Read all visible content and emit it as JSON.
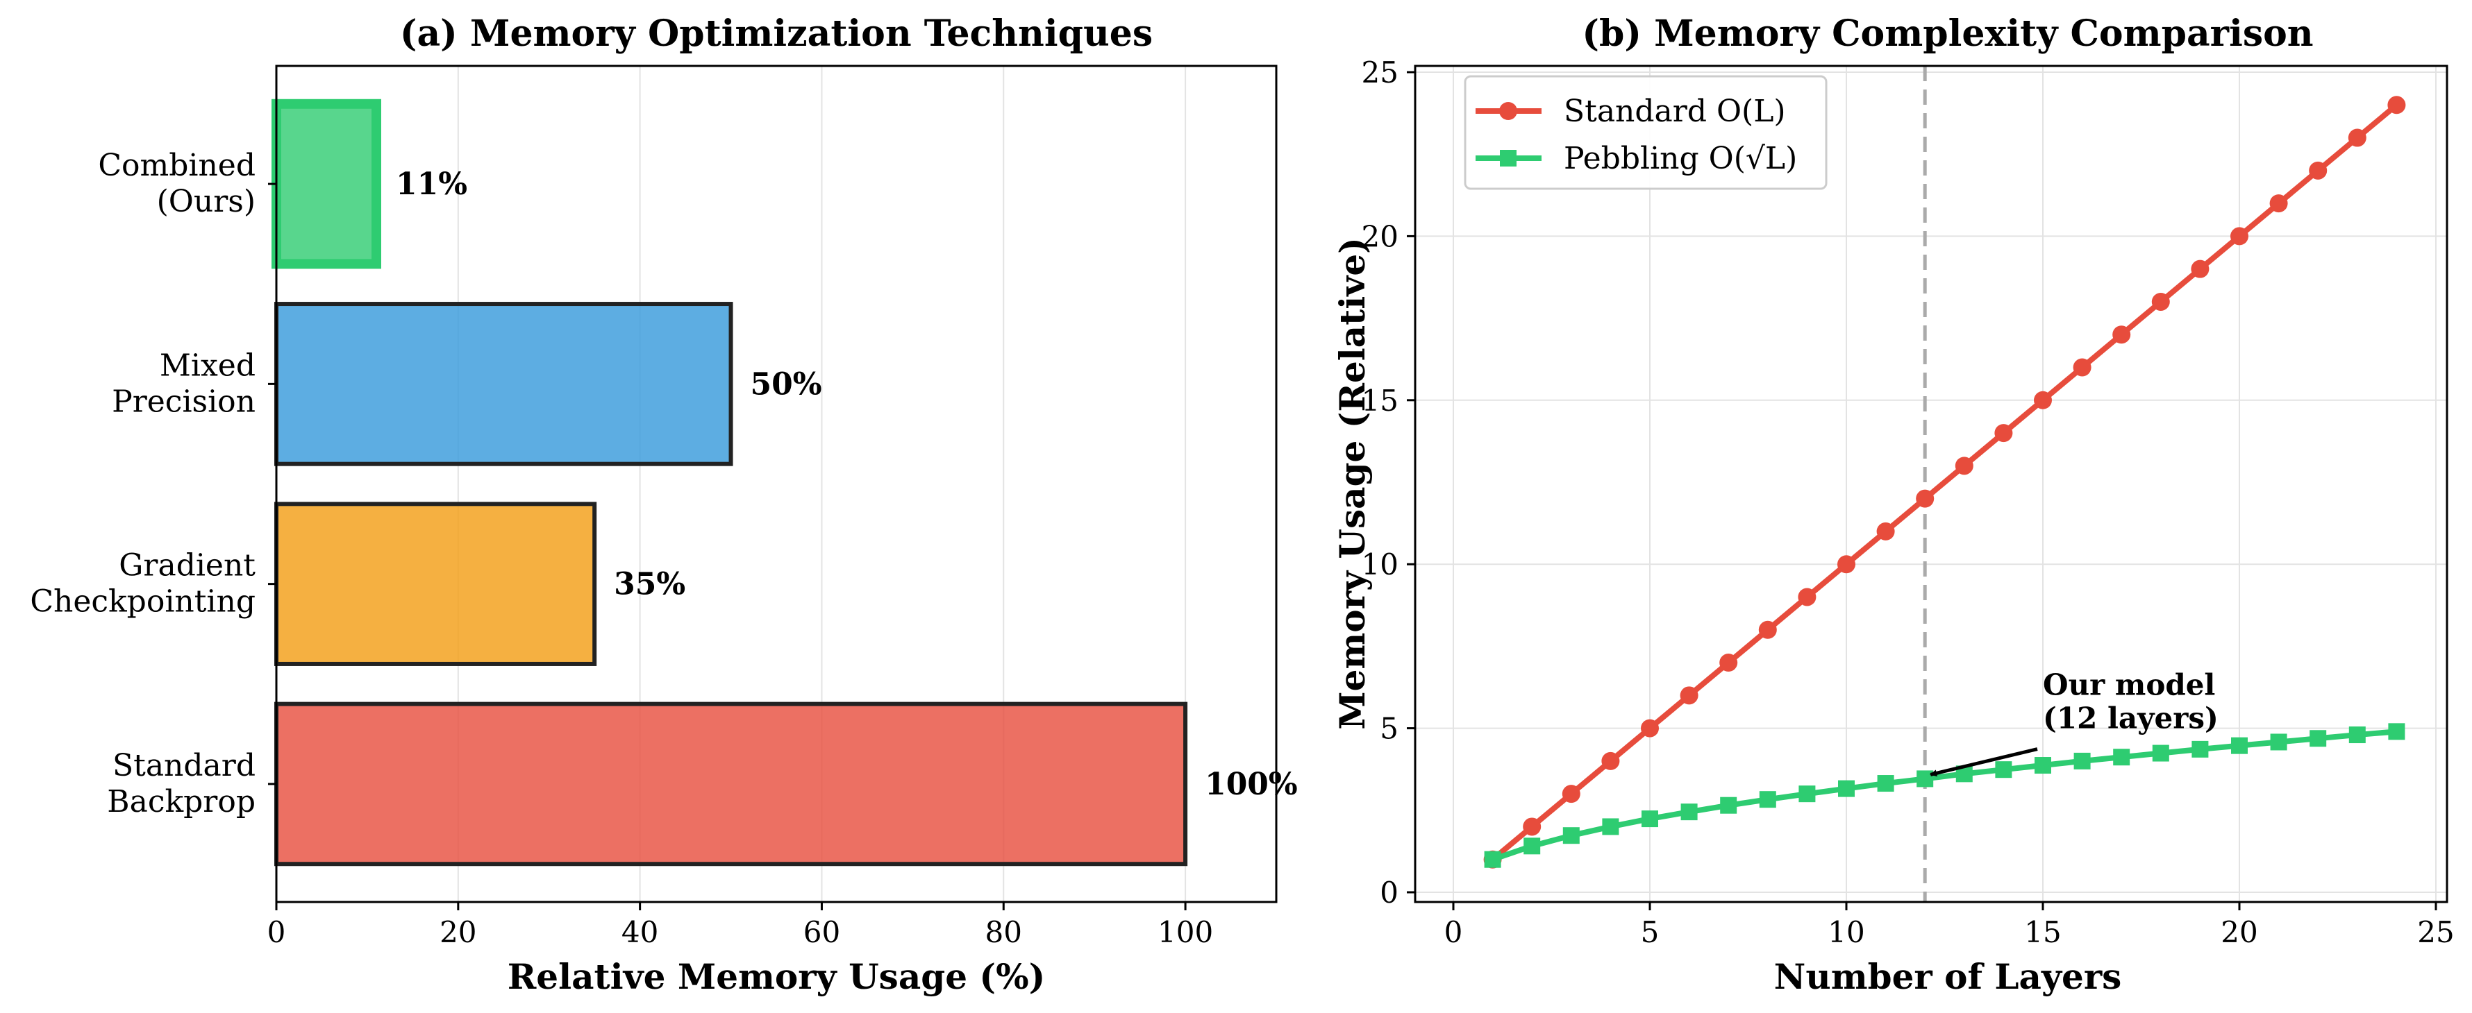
{
  "chart_data": [
    {
      "type": "bar",
      "orientation": "horizontal",
      "title": "(a) Memory Optimization Techniques",
      "xlabel": "Relative Memory Usage (%)",
      "ylabel": "",
      "xlim": [
        0,
        110
      ],
      "xticks": [
        0,
        20,
        40,
        60,
        80,
        100
      ],
      "grid": "x",
      "categories": [
        "Standard\nBackprop",
        "Gradient\nCheckpointing",
        "Mixed\nPrecision",
        "Combined\n(Ours)"
      ],
      "values": [
        100,
        35,
        50,
        11
      ],
      "value_labels": [
        "100%",
        "35%",
        "50%",
        "11%"
      ],
      "colors": [
        "#e74c3c",
        "#f39c12",
        "#3498db",
        "#2ecc71"
      ],
      "highlight": "Combined\n(Ours)"
    },
    {
      "type": "line",
      "title": "(b) Memory Complexity Comparison",
      "xlabel": "Number of Layers",
      "ylabel": "Memory Usage (Relative)",
      "xlim": [
        0,
        25
      ],
      "ylim": [
        0,
        25
      ],
      "xticks": [
        0,
        5,
        10,
        15,
        20,
        25
      ],
      "yticks": [
        0,
        5,
        10,
        15,
        20,
        25
      ],
      "grid": true,
      "legend_position": "top-left",
      "x": [
        1,
        2,
        3,
        4,
        5,
        6,
        7,
        8,
        9,
        10,
        11,
        12,
        13,
        14,
        15,
        16,
        17,
        18,
        19,
        20,
        21,
        22,
        23,
        24
      ],
      "series": [
        {
          "name": "Standard O(L)",
          "color": "#e74c3c",
          "marker": "circle",
          "values": [
            1,
            2,
            3,
            4,
            5,
            6,
            7,
            8,
            9,
            10,
            11,
            12,
            13,
            14,
            15,
            16,
            17,
            18,
            19,
            20,
            21,
            22,
            23,
            24
          ]
        },
        {
          "name": "Pebbling O(√L)",
          "color": "#2ecc71",
          "marker": "square",
          "values": [
            1.0,
            1.41,
            1.73,
            2.0,
            2.24,
            2.45,
            2.65,
            2.83,
            3.0,
            3.16,
            3.32,
            3.46,
            3.61,
            3.74,
            3.87,
            4.0,
            4.12,
            4.24,
            4.36,
            4.47,
            4.58,
            4.69,
            4.8,
            4.9
          ]
        }
      ],
      "vline": {
        "x": 12,
        "color": "#aaaaaa",
        "style": "dashed"
      },
      "annotation": {
        "text": [
          "Our model",
          "(12 layers)"
        ],
        "point": [
          12,
          3.46
        ],
        "text_at": [
          15,
          5
        ]
      }
    }
  ]
}
